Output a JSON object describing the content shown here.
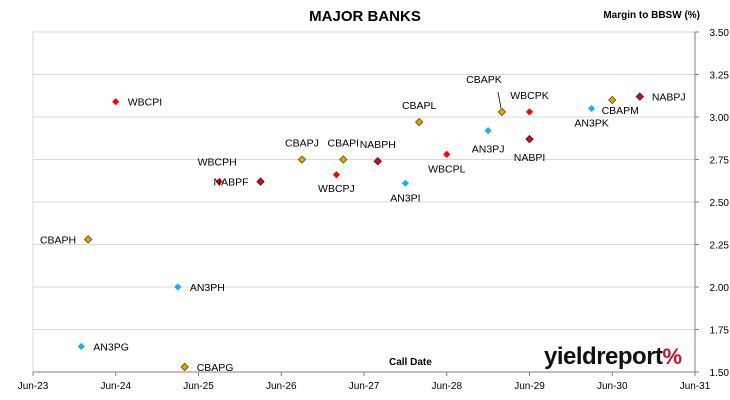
{
  "chart_data": {
    "type": "scatter",
    "title": "MAJOR BANKS",
    "ylabel": "Margin to BBSW (%)",
    "xlabel": "Call Date",
    "xticks": [
      "Jun-23",
      "Jun-24",
      "Jun-25",
      "Jun-26",
      "Jun-27",
      "Jun-28",
      "Jun-29",
      "Jun-30",
      "Jun-31"
    ],
    "yticks": [
      "1.50",
      "1.75",
      "2.00",
      "2.25",
      "2.50",
      "2.75",
      "3.00",
      "3.25",
      "3.50"
    ],
    "xlim": [
      "2023-06",
      "2031-06"
    ],
    "ylim": [
      1.5,
      3.5
    ],
    "grid": "horizontal",
    "legend": "none",
    "issuer_colors": {
      "WBC": "#ff0000",
      "CBA": "#e0a800",
      "AN3": "#1ab0ef",
      "NAB": "#c0142c"
    },
    "points": [
      {
        "label": "WBCPI",
        "x": "2024-06",
        "y": 3.09,
        "issuer": "WBC"
      },
      {
        "label": "CBAPH",
        "x": "2024-02",
        "y": 2.28,
        "issuer": "CBA"
      },
      {
        "label": "AN3PG",
        "x": "2024-01",
        "y": 1.65,
        "issuer": "AN3"
      },
      {
        "label": "AN3PH",
        "x": "2025-03",
        "y": 2.0,
        "issuer": "AN3"
      },
      {
        "label": "CBAPG",
        "x": "2025-04",
        "y": 1.53,
        "issuer": "CBA"
      },
      {
        "label": "WBCPH",
        "x": "2025-09",
        "y": 2.62,
        "issuer": "WBC"
      },
      {
        "label": "NABPF",
        "x": "2026-03",
        "y": 2.62,
        "issuer": "NAB"
      },
      {
        "label": "CBAPJ",
        "x": "2026-09",
        "y": 2.75,
        "issuer": "CBA"
      },
      {
        "label": "WBCPJ",
        "x": "2027-02",
        "y": 2.66,
        "issuer": "WBC"
      },
      {
        "label": "CBAPI",
        "x": "2027-03",
        "y": 2.75,
        "issuer": "CBA"
      },
      {
        "label": "NABPH",
        "x": "2027-08",
        "y": 2.74,
        "issuer": "NAB"
      },
      {
        "label": "AN3PI",
        "x": "2027-12",
        "y": 2.61,
        "issuer": "AN3"
      },
      {
        "label": "CBAPL",
        "x": "2028-02",
        "y": 2.97,
        "issuer": "CBA"
      },
      {
        "label": "WBCPL",
        "x": "2028-06",
        "y": 2.78,
        "issuer": "WBC"
      },
      {
        "label": "AN3PJ",
        "x": "2028-12",
        "y": 2.92,
        "issuer": "AN3"
      },
      {
        "label": "CBAPK",
        "x": "2029-02",
        "y": 3.03,
        "issuer": "CBA"
      },
      {
        "label": "WBCPK",
        "x": "2029-06",
        "y": 3.03,
        "issuer": "WBC"
      },
      {
        "label": "NABPI",
        "x": "2029-06",
        "y": 2.87,
        "issuer": "NAB"
      },
      {
        "label": "AN3PK",
        "x": "2030-03",
        "y": 3.05,
        "issuer": "AN3"
      },
      {
        "label": "CBAPM",
        "x": "2030-06",
        "y": 3.1,
        "issuer": "CBA"
      },
      {
        "label": "NABPJ",
        "x": "2030-10",
        "y": 3.12,
        "issuer": "NAB"
      }
    ]
  },
  "logo": {
    "text": "yieldreport",
    "symbol": "%"
  }
}
